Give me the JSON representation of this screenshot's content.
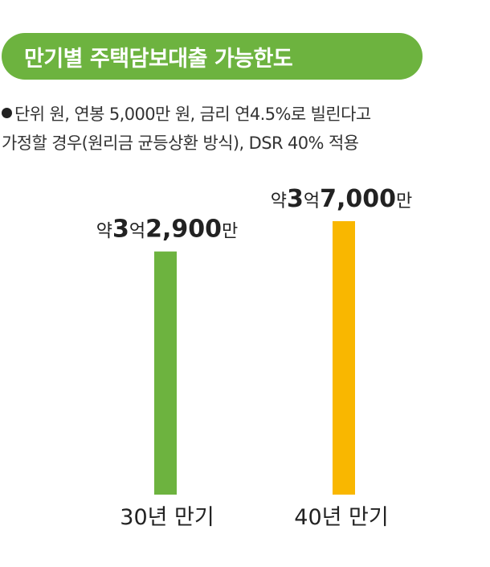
{
  "header": {
    "title": "만기별 주택담보대출 가능한도"
  },
  "note": {
    "line1": "단위  원, 연봉 5,000만 원, 금리 연4.5%로 빌린다고",
    "line2": "가정할 경우(원리금 균등상환 방식), DSR 40% 적용"
  },
  "chart_data": {
    "type": "bar",
    "title": "만기별 주택담보대출 가능한도",
    "categories": [
      "30년 만기",
      "40년 만기"
    ],
    "values": [
      329000000,
      370000000
    ],
    "value_labels": [
      {
        "prefix": "약",
        "parts": [
          "3",
          "억",
          "2,900",
          "만"
        ]
      },
      {
        "prefix": "약",
        "parts": [
          "3",
          "억",
          "7,000",
          "만"
        ]
      }
    ],
    "bar_colors": [
      "#6db33f",
      "#f9b700"
    ],
    "unit": "원",
    "grid": false,
    "legend": "none"
  },
  "colors": {
    "banner": "#6db33f",
    "bar_30": "#6db33f",
    "bar_40": "#f9b700"
  }
}
